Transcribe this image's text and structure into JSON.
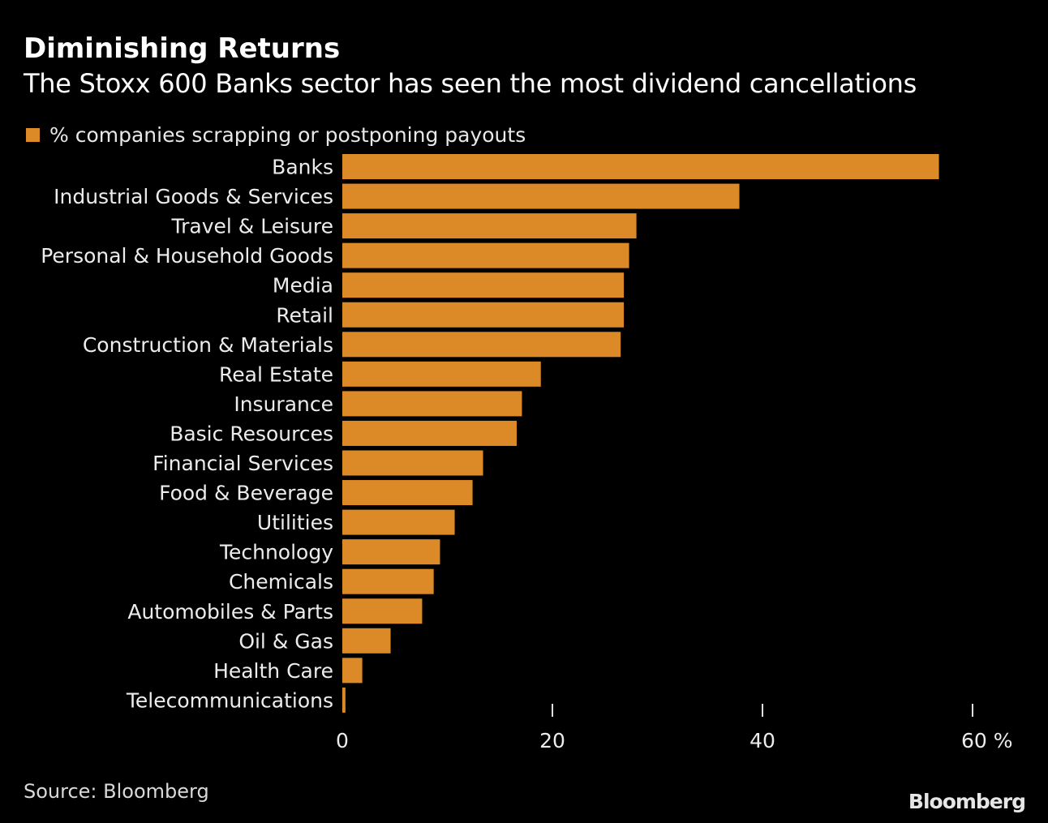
{
  "header": {
    "title": "Diminishing Returns",
    "subtitle": "The Stoxx 600 Banks sector has seen the most dividend cancellations"
  },
  "footer": {
    "source": "Source: Bloomberg",
    "brand": "Bloomberg"
  },
  "colors": {
    "bar": "#dc8a28",
    "background": "#000000",
    "text": "#ececec"
  },
  "chart_data": {
    "type": "bar",
    "orientation": "horizontal",
    "title": "Diminishing Returns",
    "subtitle": "The Stoxx 600 Banks sector has seen the most dividend cancellations",
    "legend": {
      "position": "top-left",
      "entries": [
        "% companies scrapping or postponing payouts"
      ]
    },
    "categories": [
      "Banks",
      "Industrial Goods & Services",
      "Travel & Leisure",
      "Personal & Household Goods",
      "Media",
      "Retail",
      "Construction & Materials",
      "Real Estate",
      "Insurance",
      "Basic Resources",
      "Financial Services",
      "Food & Beverage",
      "Utilities",
      "Technology",
      "Chemicals",
      "Automobiles & Parts",
      "Oil & Gas",
      "Health Care",
      "Telecommunications"
    ],
    "series": [
      {
        "name": "% companies scrapping or postponing payouts",
        "values": [
          56.8,
          37.8,
          28.0,
          27.3,
          26.8,
          26.8,
          26.5,
          18.9,
          17.1,
          16.6,
          13.4,
          12.4,
          10.7,
          9.3,
          8.7,
          7.6,
          4.6,
          1.9,
          0.3
        ]
      }
    ],
    "xlim": [
      0,
      60
    ],
    "xticks": [
      0,
      20,
      40,
      60
    ],
    "xtick_labels": [
      "0",
      "20",
      "40",
      "60 %"
    ],
    "xlabel": "",
    "ylabel": "",
    "grid": false,
    "source": "Source: Bloomberg"
  }
}
